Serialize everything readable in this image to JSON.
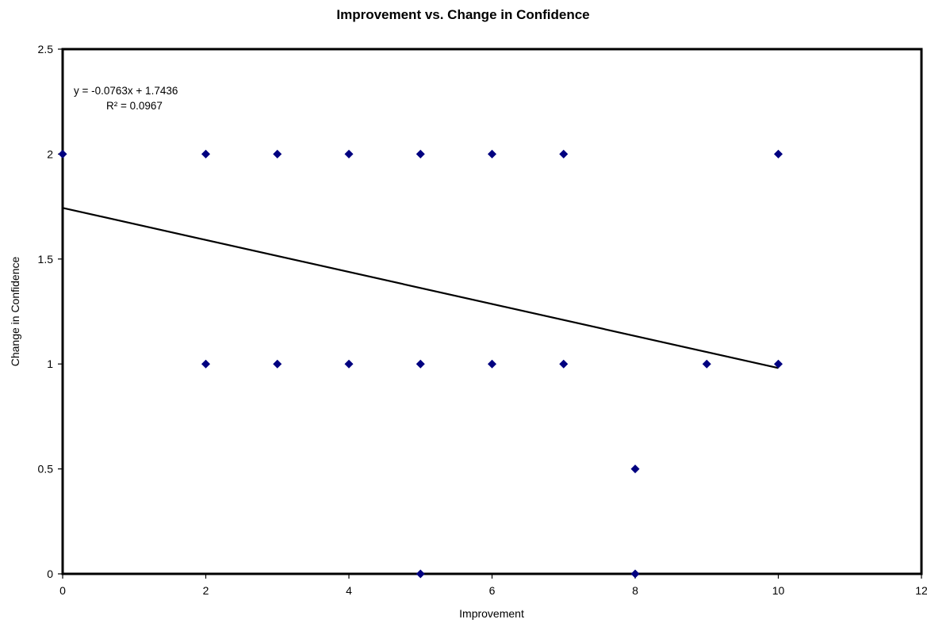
{
  "chart_data": {
    "type": "scatter",
    "title": "Improvement vs. Change in Confidence",
    "xlabel": "Improvement",
    "ylabel": "Change in Confidence",
    "xlim": [
      0,
      12
    ],
    "ylim": [
      0,
      2.5
    ],
    "x_ticks": [
      "0",
      "2",
      "4",
      "6",
      "8",
      "10",
      "12"
    ],
    "y_ticks": [
      "0",
      "0.5",
      "1",
      "1.5",
      "2",
      "2.5"
    ],
    "grid": false,
    "legend": "none",
    "marker_color": "#000080",
    "trendline": {
      "slope": -0.0763,
      "intercept": 1.7436,
      "x_range": [
        0,
        10
      ],
      "equation_label": "y = -0.0763x + 1.7436",
      "r2_label": "R² = 0.0967"
    },
    "series": [
      {
        "points": [
          {
            "x": 0,
            "y": 2
          },
          {
            "x": 2,
            "y": 2
          },
          {
            "x": 3,
            "y": 2
          },
          {
            "x": 4,
            "y": 2
          },
          {
            "x": 5,
            "y": 2
          },
          {
            "x": 6,
            "y": 2
          },
          {
            "x": 7,
            "y": 2
          },
          {
            "x": 10,
            "y": 2
          },
          {
            "x": 2,
            "y": 1
          },
          {
            "x": 3,
            "y": 1
          },
          {
            "x": 4,
            "y": 1
          },
          {
            "x": 5,
            "y": 1
          },
          {
            "x": 6,
            "y": 1
          },
          {
            "x": 7,
            "y": 1
          },
          {
            "x": 9,
            "y": 1
          },
          {
            "x": 10,
            "y": 1
          },
          {
            "x": 8,
            "y": 0.5
          },
          {
            "x": 5,
            "y": 0
          },
          {
            "x": 8,
            "y": 0
          }
        ]
      }
    ]
  }
}
